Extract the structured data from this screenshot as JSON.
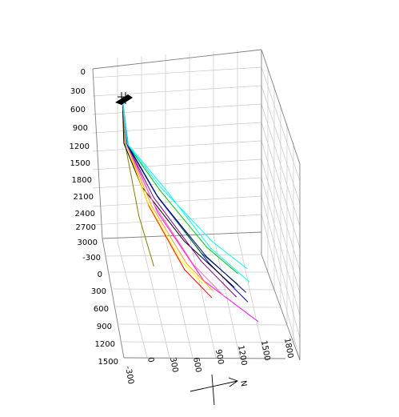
{
  "chart_data": {
    "type": "line",
    "subtype": "3d-well-trajectory",
    "grid": true,
    "legend": "none",
    "depth_axis": {
      "ticks": [
        "0",
        "300",
        "600",
        "900",
        "1200",
        "1500",
        "1800",
        "2100",
        "2400",
        "2700",
        "3000"
      ],
      "ylim": [
        0,
        3000
      ]
    },
    "horizontal_axis_1": {
      "ticks": [
        "-300",
        "0",
        "300",
        "600",
        "900",
        "1200",
        "1500"
      ],
      "lim": [
        -300,
        1500
      ]
    },
    "horizontal_axis_2": {
      "ticks": [
        "-300",
        "0",
        "300",
        "600",
        "900",
        "1200",
        "1500",
        "1800"
      ],
      "lim": [
        -300,
        1800
      ]
    },
    "compass_label": "N",
    "series": [
      {
        "color": "#ff00ff",
        "points": [
          [
            0,
            0,
            0
          ],
          [
            40,
            60,
            900
          ],
          [
            200,
            500,
            1800
          ],
          [
            600,
            900,
            2700
          ],
          [
            1100,
            1300,
            3000
          ]
        ]
      },
      {
        "color": "#ff0000",
        "points": [
          [
            0,
            0,
            0
          ],
          [
            30,
            50,
            900
          ],
          [
            150,
            380,
            1800
          ],
          [
            450,
            700,
            2700
          ],
          [
            700,
            900,
            3000
          ]
        ]
      },
      {
        "color": "#808000",
        "points": [
          [
            0,
            0,
            0
          ],
          [
            20,
            30,
            900
          ],
          [
            60,
            300,
            2100
          ],
          [
            150,
            500,
            2900
          ]
        ]
      },
      {
        "color": "#00ffff",
        "points": [
          [
            0,
            0,
            0
          ],
          [
            60,
            40,
            900
          ],
          [
            450,
            200,
            1500
          ],
          [
            900,
            500,
            2300
          ],
          [
            1250,
            800,
            2600
          ]
        ]
      },
      {
        "color": "#0000ff",
        "points": [
          [
            0,
            0,
            0
          ],
          [
            50,
            40,
            900
          ],
          [
            350,
            250,
            1700
          ],
          [
            800,
            650,
            2500
          ],
          [
            1150,
            950,
            2900
          ]
        ]
      },
      {
        "color": "#000000",
        "points": [
          [
            0,
            0,
            0
          ],
          [
            10,
            20,
            900
          ],
          [
            100,
            300,
            1500
          ],
          [
            500,
            600,
            2200
          ],
          [
            1000,
            900,
            2700
          ]
        ]
      },
      {
        "color": "#008000",
        "points": [
          [
            0,
            0,
            0
          ],
          [
            40,
            40,
            900
          ],
          [
            300,
            250,
            1600
          ],
          [
            750,
            550,
            2400
          ],
          [
            1100,
            800,
            2700
          ]
        ]
      },
      {
        "color": "#ffa500",
        "points": [
          [
            0,
            0,
            0
          ],
          [
            30,
            50,
            900
          ],
          [
            200,
            350,
            1800
          ],
          [
            500,
            650,
            2600
          ],
          [
            750,
            850,
            2900
          ]
        ]
      },
      {
        "color": "#800080",
        "points": [
          [
            0,
            0,
            0
          ],
          [
            40,
            40,
            900
          ],
          [
            280,
            260,
            1700
          ],
          [
            700,
            650,
            2500
          ],
          [
            1000,
            950,
            2850
          ]
        ]
      },
      {
        "color": "#00c000",
        "points": [
          [
            0,
            0,
            0
          ],
          [
            50,
            30,
            900
          ],
          [
            380,
            220,
            1550
          ],
          [
            850,
            500,
            2300
          ],
          [
            1150,
            700,
            2550
          ]
        ]
      },
      {
        "color": "#ffff00",
        "points": [
          [
            0,
            0,
            0
          ],
          [
            30,
            40,
            900
          ],
          [
            180,
            300,
            1800
          ],
          [
            450,
            600,
            2600
          ],
          [
            650,
            780,
            2850
          ]
        ]
      },
      {
        "color": "#000080",
        "points": [
          [
            0,
            0,
            0
          ],
          [
            45,
            35,
            900
          ],
          [
            320,
            270,
            1650
          ],
          [
            780,
            620,
            2400
          ],
          [
            1150,
            900,
            2750
          ]
        ]
      },
      {
        "color": "#ff69b4",
        "points": [
          [
            0,
            0,
            0
          ],
          [
            30,
            45,
            900
          ],
          [
            220,
            380,
            1750
          ],
          [
            560,
            720,
            2550
          ],
          [
            850,
            950,
            2900
          ]
        ]
      },
      {
        "color": "#00ffff",
        "points": [
          [
            0,
            0,
            0
          ],
          [
            55,
            30,
            900
          ],
          [
            400,
            200,
            1500
          ],
          [
            950,
            450,
            2200
          ],
          [
            1300,
            650,
            2450
          ]
        ]
      }
    ]
  }
}
